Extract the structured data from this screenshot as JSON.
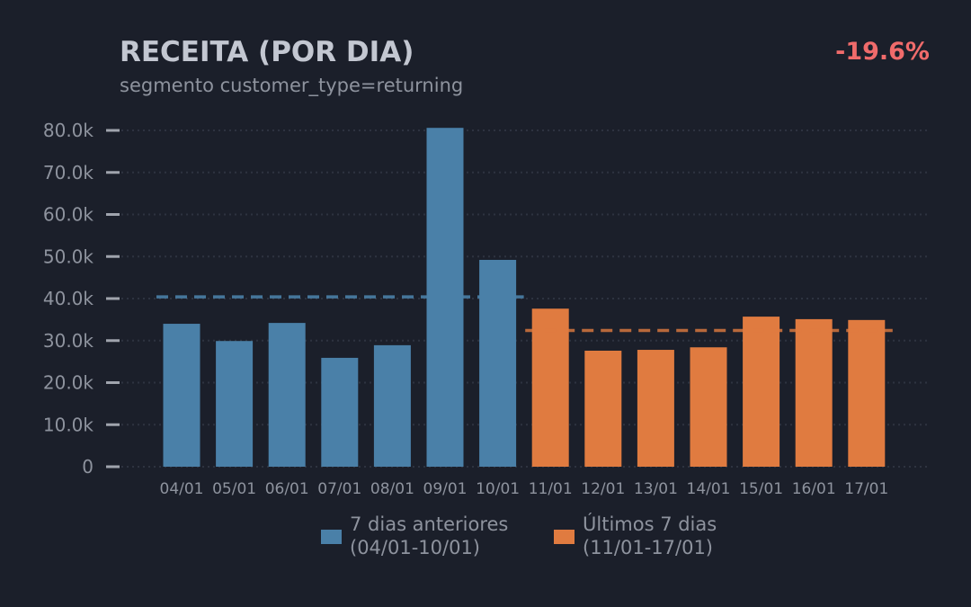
{
  "chart_data": {
    "type": "bar",
    "title": "RECEITA (POR DIA)",
    "subtitle": "segmento customer_type=returning",
    "change_label": "-19.6%",
    "categories": [
      "04/01",
      "05/01",
      "06/01",
      "07/01",
      "08/01",
      "09/01",
      "10/01",
      "11/01",
      "12/01",
      "13/01",
      "14/01",
      "15/01",
      "16/01",
      "17/01"
    ],
    "values": [
      34000,
      29900,
      34200,
      25900,
      28900,
      80600,
      49200,
      37600,
      27600,
      27800,
      28400,
      35700,
      35100,
      34900
    ],
    "series": [
      {
        "name": "7 dias anteriores (04/01-10/01)",
        "line1": "7 dias anteriores",
        "line2": "(04/01-10/01)",
        "color": "#4a80a8",
        "range": [
          0,
          6
        ],
        "mean": 40400
      },
      {
        "name": "Últimos 7 dias (11/01-17/01)",
        "line1": "Últimos 7 dias",
        "line2": "(11/01-17/01)",
        "color": "#e07b40",
        "range": [
          7,
          13
        ],
        "mean": 32400
      }
    ],
    "ylim": [
      0,
      80000
    ],
    "yticks": [
      0,
      10000,
      20000,
      30000,
      40000,
      50000,
      60000,
      70000,
      80000
    ],
    "ytick_labels": [
      "0",
      "10.0k",
      "20.0k",
      "30.0k",
      "40.0k",
      "50.0k",
      "60.0k",
      "70.0k",
      "80.0k"
    ],
    "grid": true,
    "legend_position": "bottom",
    "xlabel": "",
    "ylabel": ""
  }
}
